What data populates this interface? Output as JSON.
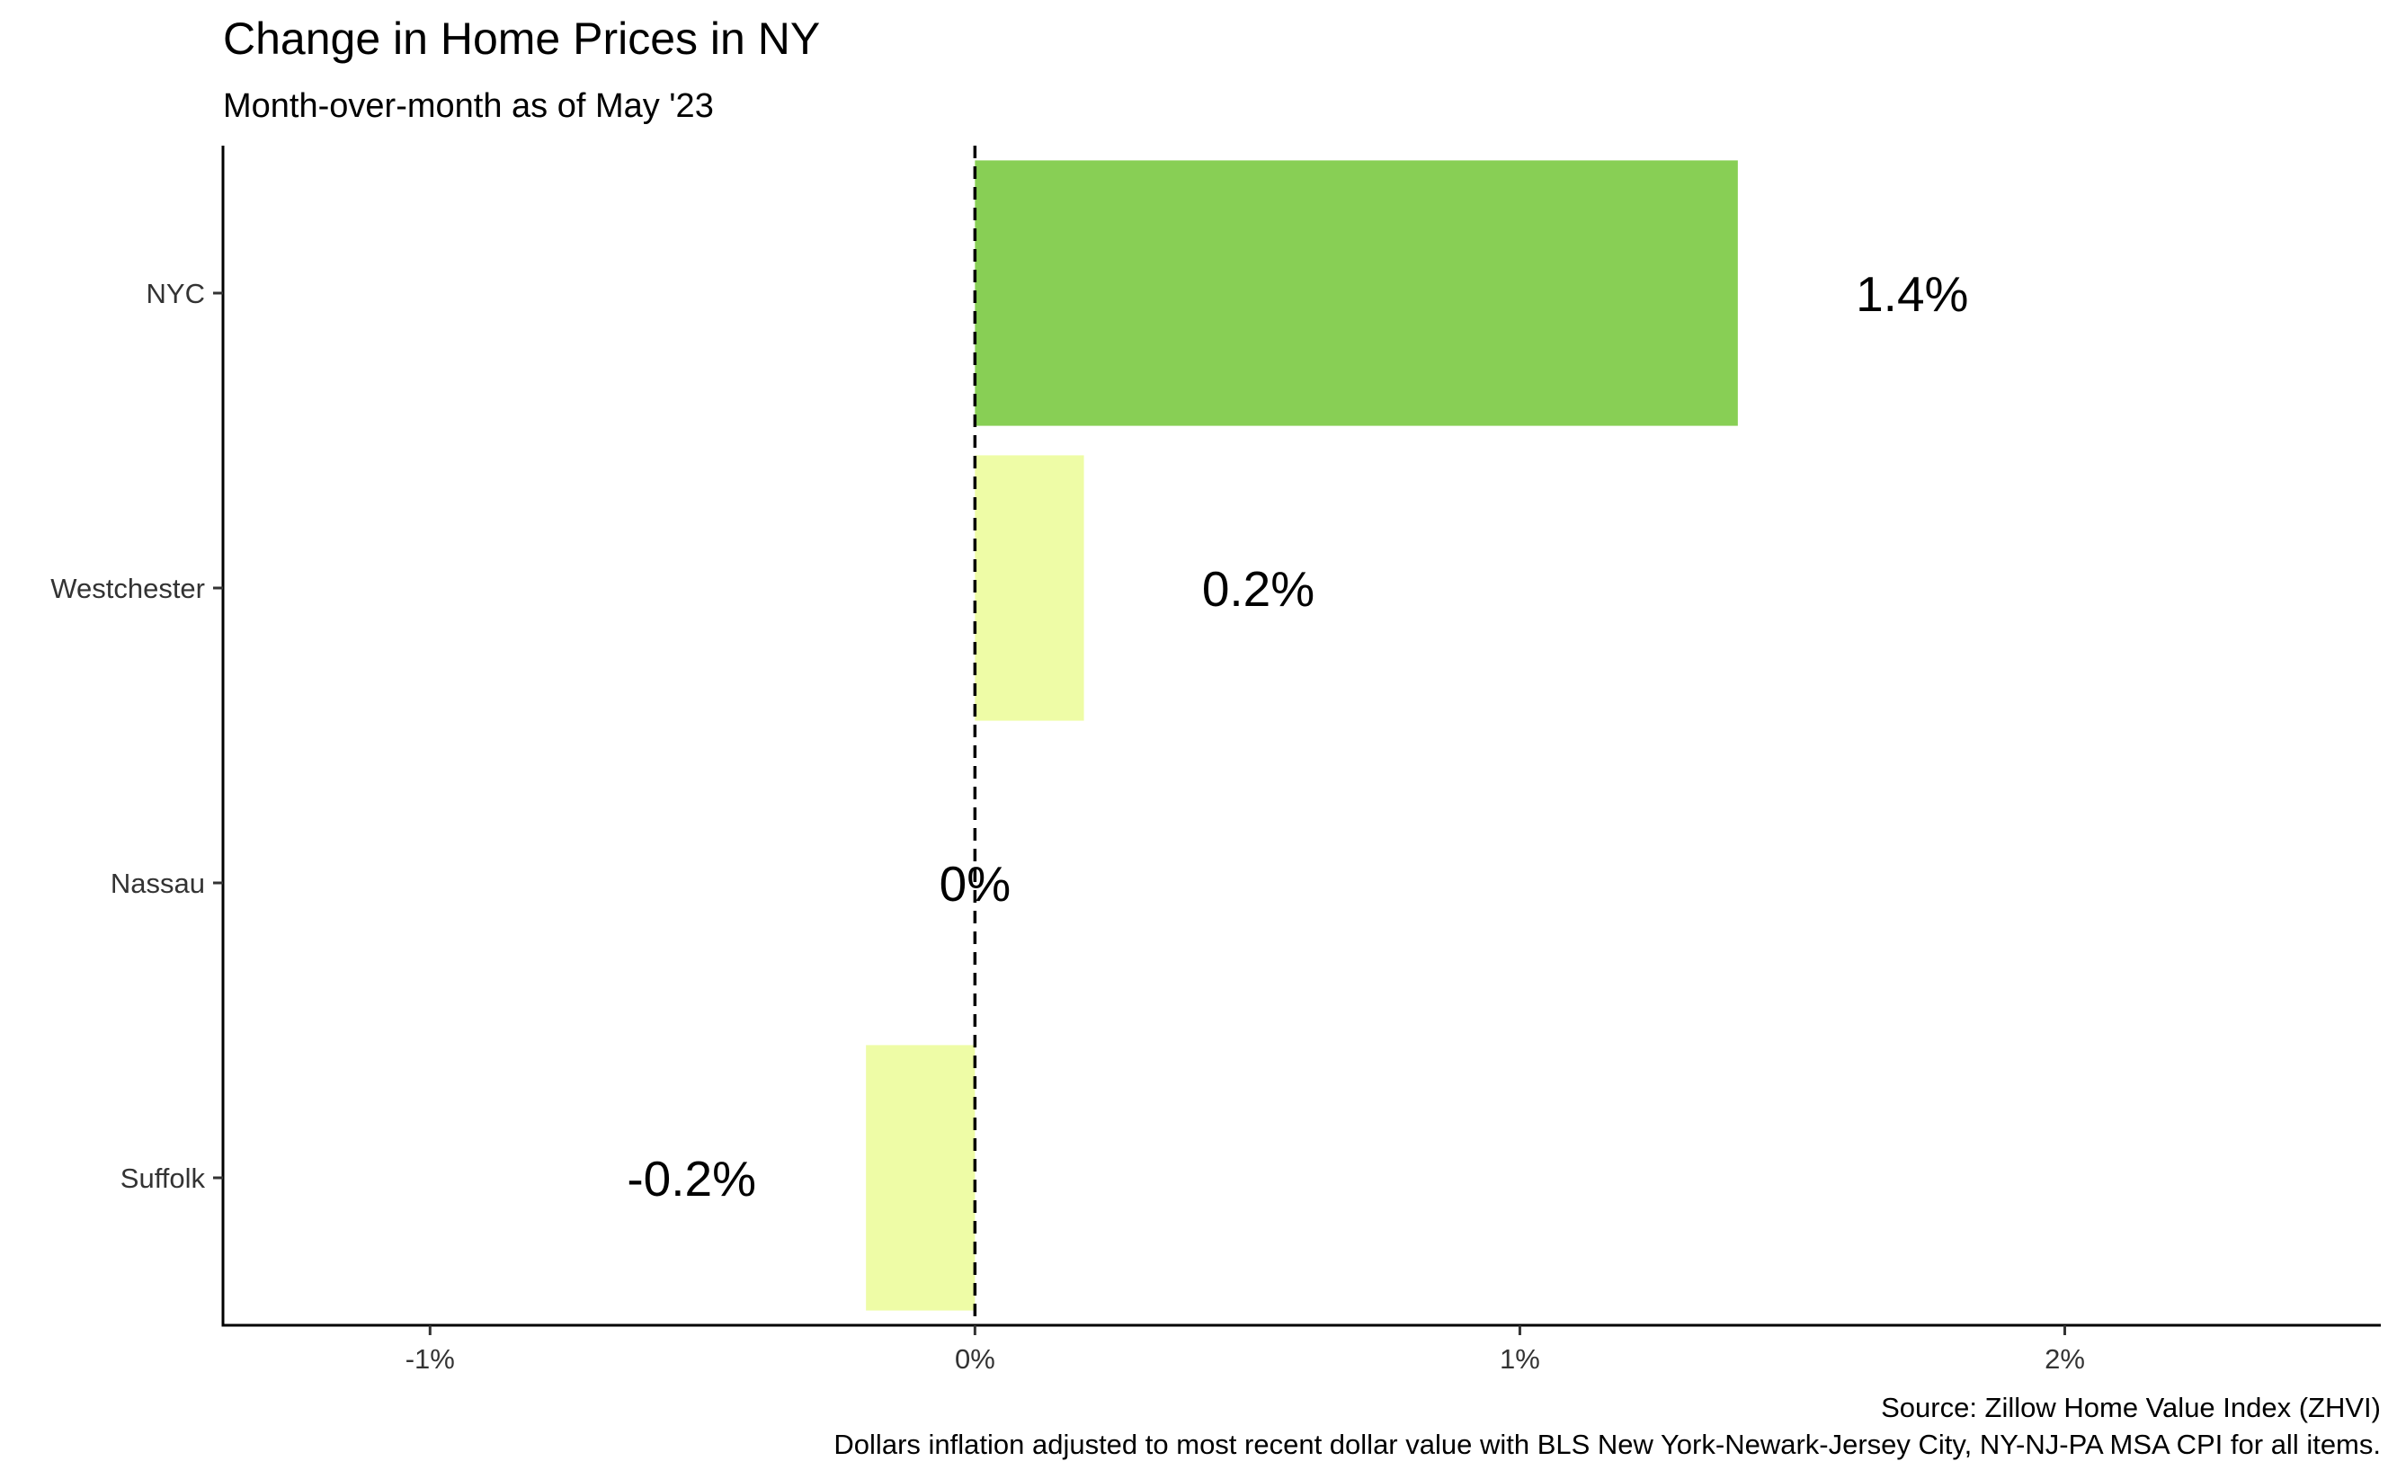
{
  "chart_data": {
    "type": "bar",
    "orientation": "horizontal",
    "title": "Change in Home Prices in NY",
    "subtitle": "Month-over-month as of May '23",
    "categories": [
      "NYC",
      "Westchester",
      "Nassau",
      "Suffolk"
    ],
    "values": [
      1.4,
      0.2,
      0.0,
      -0.2
    ],
    "value_labels": [
      "1.4%",
      "0.2%",
      "0%",
      "-0.2%"
    ],
    "bar_colors": [
      "#88cf55",
      "#eefca6",
      "#eefca6",
      "#eefca6"
    ],
    "x_ticks": [
      -1,
      0,
      1,
      2
    ],
    "x_tick_labels": [
      "-1%",
      "0%",
      "1%",
      "2%"
    ],
    "xlim": [
      -1.38,
      2.58
    ],
    "reference_line": {
      "value": 0,
      "style": "dashed"
    },
    "xlabel": "",
    "ylabel": "",
    "grid": false,
    "legend": "none",
    "caption_lines": [
      "Source: Zillow Home Value Index (ZHVI)",
      "Dollars inflation adjusted to most recent dollar value with BLS New York-Newark-Jersey City, NY-NJ-PA MSA CPI for all items."
    ]
  }
}
